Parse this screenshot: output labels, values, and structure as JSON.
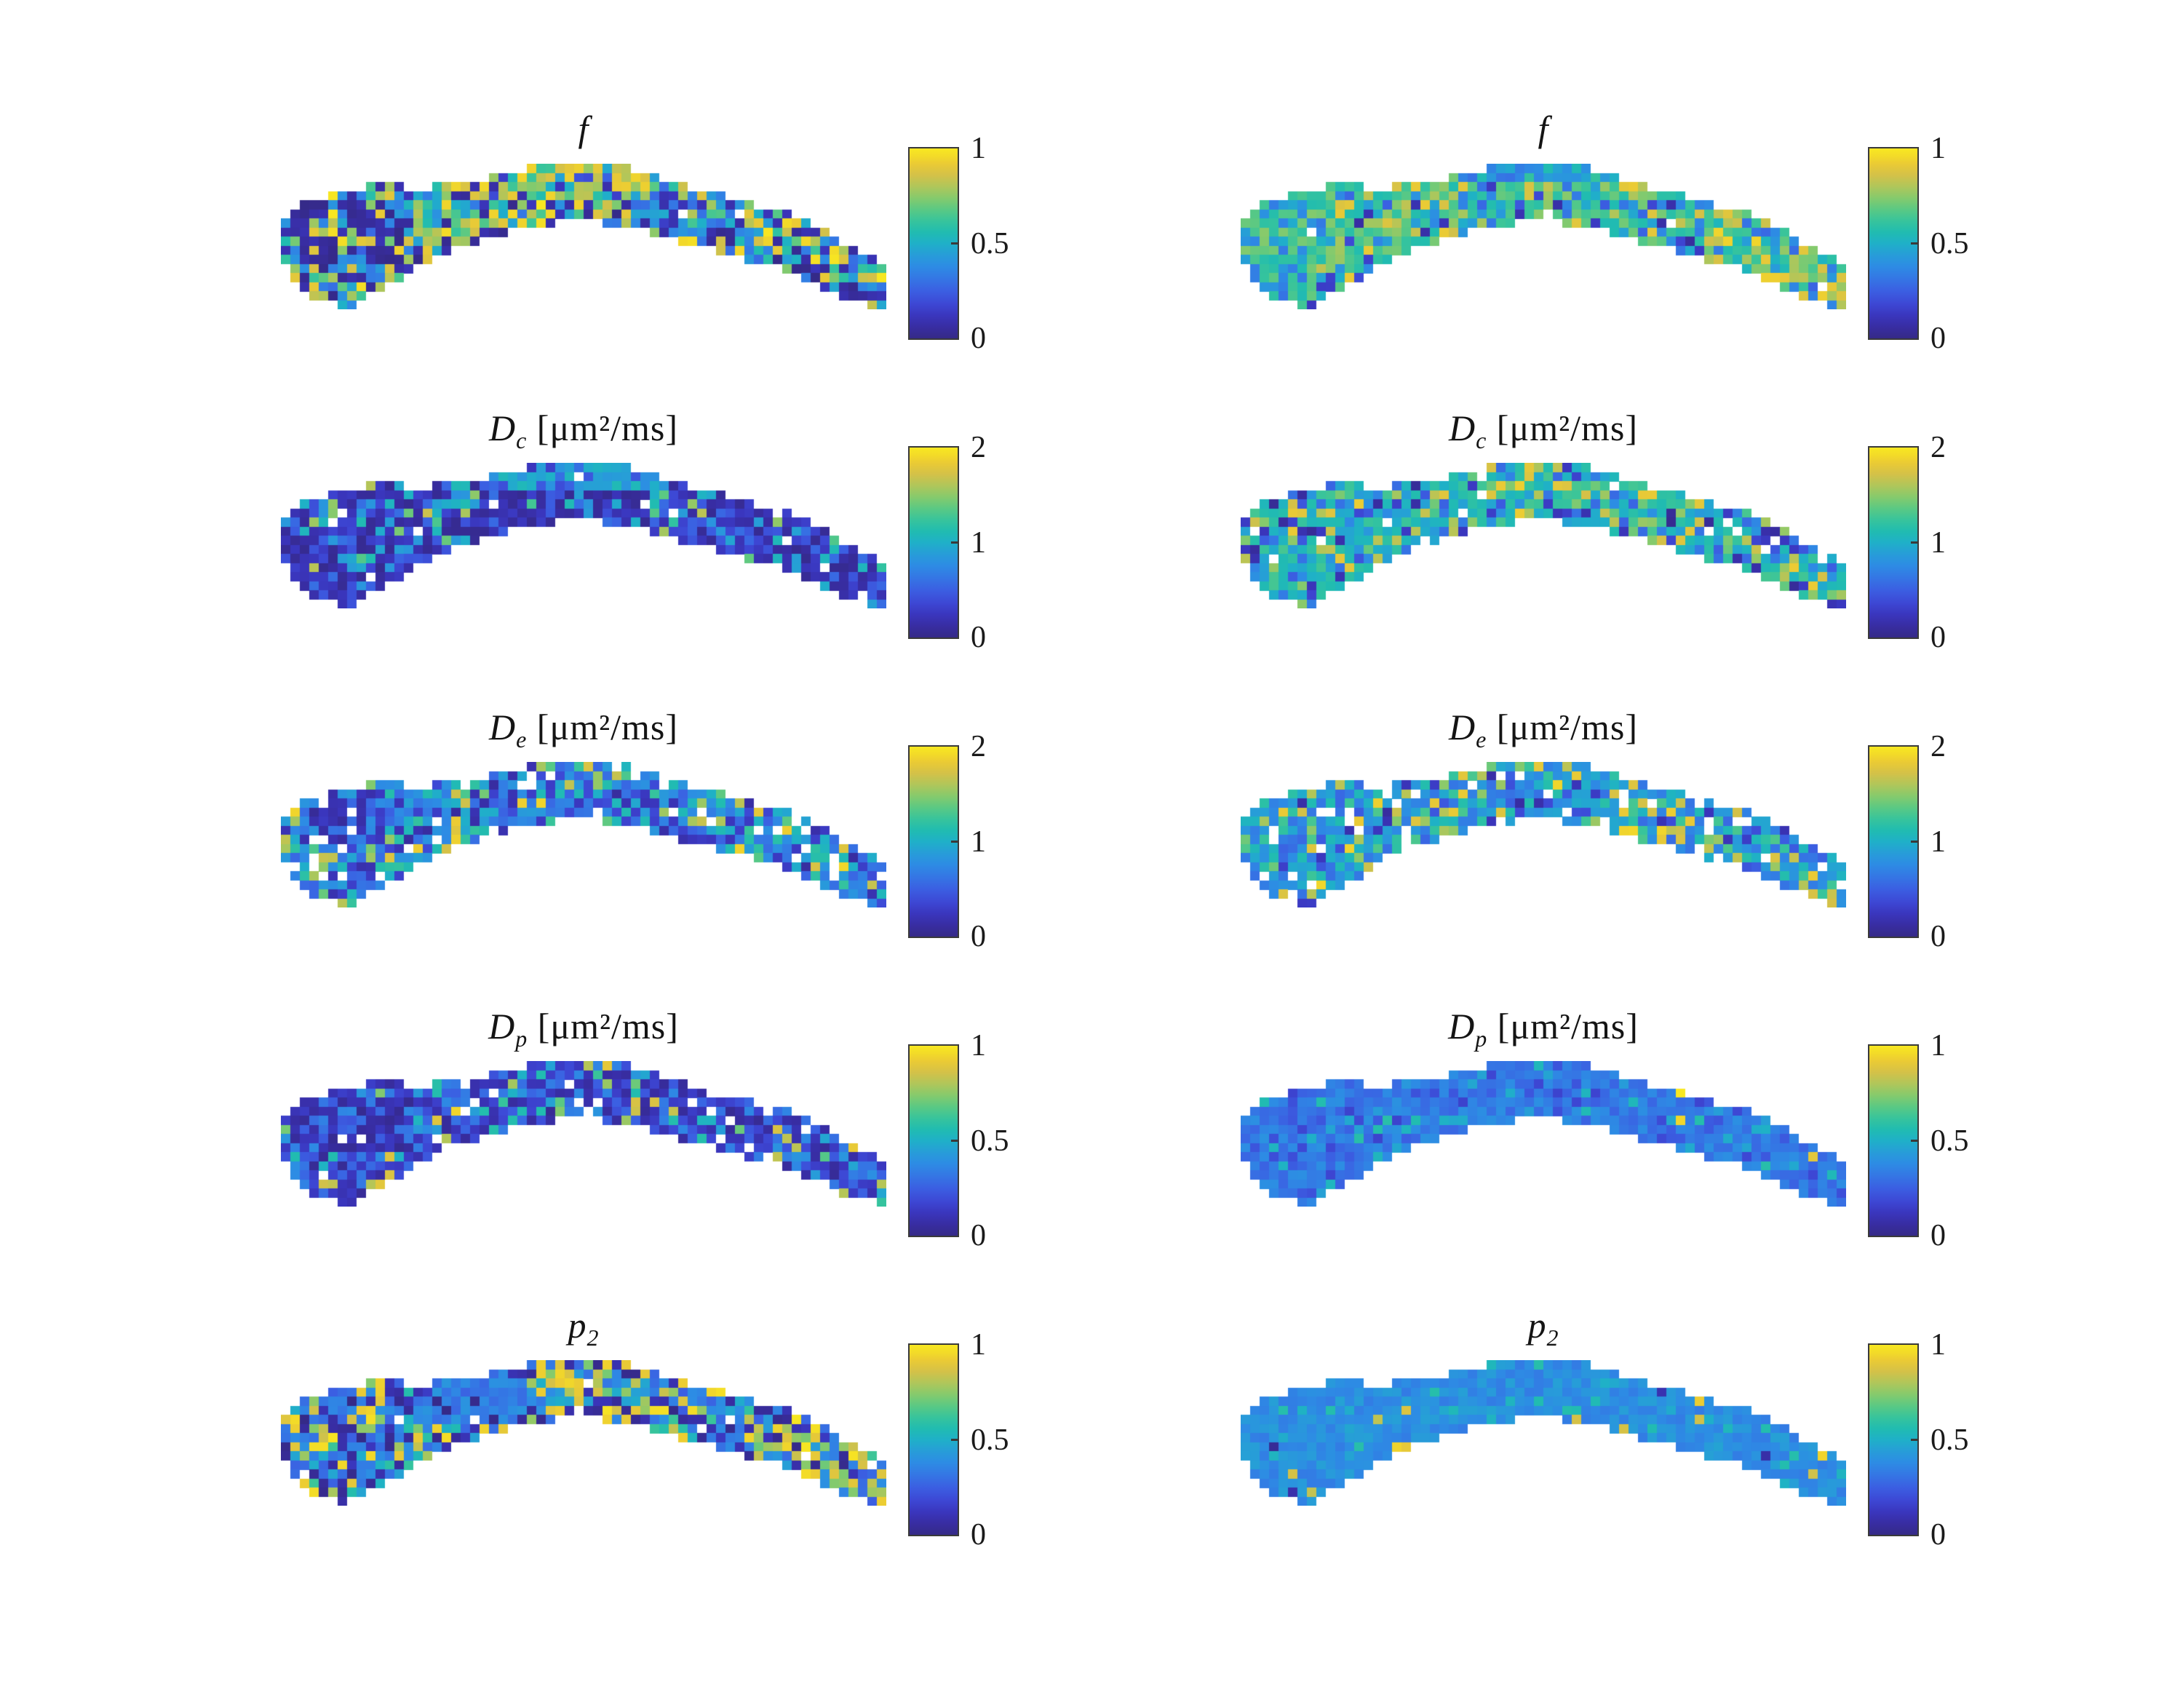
{
  "figure": {
    "background": "#ffffff",
    "description": "5x2 grid of voxelwise parameter maps of a curved tissue slice with parula colorbars"
  },
  "chart_data": {
    "type": "heatmap",
    "layout": {
      "rows": 5,
      "columns": 2,
      "legend_position": "right-of-each-panel",
      "grid_lines": false
    },
    "colormap": {
      "name": "parula",
      "stops": [
        [
          0.0,
          "#352A87"
        ],
        [
          0.06,
          "#382DA2"
        ],
        [
          0.12,
          "#3A36BD"
        ],
        [
          0.18,
          "#3D47D4"
        ],
        [
          0.25,
          "#3B5FE2"
        ],
        [
          0.32,
          "#3478E4"
        ],
        [
          0.38,
          "#2D8CE4"
        ],
        [
          0.44,
          "#279DD8"
        ],
        [
          0.5,
          "#1FB0C8"
        ],
        [
          0.56,
          "#21BCB0"
        ],
        [
          0.62,
          "#38C49B"
        ],
        [
          0.68,
          "#5BC983"
        ],
        [
          0.74,
          "#86CA6C"
        ],
        [
          0.8,
          "#B0C65A"
        ],
        [
          0.86,
          "#D4C148"
        ],
        [
          0.92,
          "#EBCB34"
        ],
        [
          0.96,
          "#F3DB28"
        ],
        [
          1.0,
          "#F8E821"
        ]
      ]
    },
    "grid": {
      "cols": 64,
      "rows": 16,
      "mask_top": [
        6,
        5,
        4,
        4,
        4,
        3,
        3,
        3,
        3,
        2,
        2,
        2,
        2,
        3,
        3,
        3,
        2,
        2,
        2,
        2,
        2,
        2,
        1,
        1,
        1,
        1,
        0,
        0,
        0,
        0,
        0,
        0,
        0,
        0,
        0,
        0,
        0,
        1,
        1,
        1,
        2,
        2,
        2,
        3,
        3,
        3,
        3,
        4,
        4,
        4,
        5,
        5,
        5,
        5,
        6,
        6,
        7,
        7,
        8,
        9,
        9,
        10,
        10,
        11
      ],
      "mask_bot": [
        10,
        12,
        13,
        14,
        14,
        14,
        15,
        15,
        14,
        13,
        13,
        12,
        12,
        11,
        10,
        10,
        9,
        9,
        8,
        8,
        8,
        7,
        7,
        7,
        6,
        6,
        6,
        6,
        6,
        5,
        5,
        5,
        5,
        5,
        6,
        6,
        6,
        6,
        6,
        7,
        7,
        7,
        8,
        8,
        8,
        8,
        9,
        9,
        9,
        10,
        10,
        10,
        10,
        11,
        11,
        12,
        12,
        13,
        13,
        14,
        14,
        14,
        15,
        15
      ]
    },
    "panels": [
      {
        "id": "f-left",
        "row": 0,
        "col": "left",
        "title": {
          "var": "f",
          "sub": "",
          "unit": "",
          "plain": "f"
        },
        "cbar": {
          "vmin": 0,
          "vmax": 1,
          "ticks": [
            "1",
            "0.5",
            "0"
          ]
        },
        "seed": 101,
        "holes": 0.01,
        "dist": [
          [
            0.3,
            0.72,
            1.0
          ],
          [
            0.22,
            0.0,
            0.12
          ],
          [
            0.28,
            0.28,
            0.52
          ],
          [
            0.2,
            0.52,
            0.7
          ]
        ],
        "regions": [
          {
            "c0": 1,
            "c1": 12,
            "r0": 4,
            "r1": 10,
            "dist": [
              [
                0.5,
                0.0,
                0.1
              ],
              [
                0.28,
                0.7,
                1.0
              ],
              [
                0.22,
                0.25,
                0.5
              ]
            ]
          },
          {
            "c0": 22,
            "c1": 38,
            "r0": 0,
            "r1": 3,
            "dist": [
              [
                0.62,
                0.72,
                0.95
              ],
              [
                0.25,
                0.45,
                0.68
              ],
              [
                0.13,
                0.05,
                0.3
              ]
            ]
          },
          {
            "c0": 39,
            "c1": 49,
            "r0": 3,
            "r1": 7,
            "dist": [
              [
                0.45,
                0.28,
                0.5
              ],
              [
                0.3,
                0.0,
                0.15
              ],
              [
                0.25,
                0.6,
                0.9
              ]
            ]
          }
        ]
      },
      {
        "id": "f-right",
        "row": 0,
        "col": "right",
        "title": {
          "var": "f",
          "sub": "",
          "unit": "",
          "plain": "f"
        },
        "cbar": {
          "vmin": 0,
          "vmax": 1,
          "ticks": [
            "1",
            "0.5",
            "0"
          ]
        },
        "seed": 102,
        "holes": 0.01,
        "dist": [
          [
            0.5,
            0.55,
            0.75
          ],
          [
            0.18,
            0.75,
            0.92
          ],
          [
            0.22,
            0.3,
            0.52
          ],
          [
            0.1,
            0.05,
            0.28
          ]
        ],
        "regions": [
          {
            "c0": 23,
            "c1": 39,
            "r0": 0,
            "r1": 1,
            "dist": [
              [
                0.85,
                0.3,
                0.48
              ],
              [
                0.15,
                0.5,
                0.62
              ]
            ]
          },
          {
            "c0": 50,
            "c1": 63,
            "r0": 5,
            "r1": 15,
            "dist": [
              [
                0.5,
                0.68,
                0.95
              ],
              [
                0.3,
                0.5,
                0.68
              ],
              [
                0.2,
                0.25,
                0.45
              ]
            ]
          },
          {
            "c0": 0,
            "c1": 7,
            "r0": 4,
            "r1": 12,
            "dist": [
              [
                0.6,
                0.55,
                0.75
              ],
              [
                0.4,
                0.32,
                0.5
              ]
            ]
          }
        ]
      },
      {
        "id": "Dc-left",
        "row": 1,
        "col": "left",
        "title": {
          "var": "D",
          "sub": "c",
          "unit": " [μm²/ms]",
          "plain": "Dc [um2/ms]"
        },
        "cbar": {
          "vmin": 0,
          "vmax": 2,
          "ticks": [
            "2",
            "1",
            "0"
          ]
        },
        "seed": 103,
        "holes": 0.02,
        "dist": [
          [
            0.5,
            0.02,
            0.14
          ],
          [
            0.28,
            0.14,
            0.3
          ],
          [
            0.17,
            0.4,
            0.56
          ],
          [
            0.05,
            0.6,
            0.85
          ]
        ],
        "regions": [
          {
            "c0": 22,
            "c1": 39,
            "r0": 0,
            "r1": 2,
            "dist": [
              [
                0.75,
                0.38,
                0.55
              ],
              [
                0.25,
                0.1,
                0.3
              ]
            ]
          }
        ]
      },
      {
        "id": "Dc-right",
        "row": 1,
        "col": "right",
        "title": {
          "var": "D",
          "sub": "c",
          "unit": " [μm²/ms]",
          "plain": "Dc [um2/ms]"
        },
        "cbar": {
          "vmin": 0,
          "vmax": 2,
          "ticks": [
            "2",
            "1",
            "0"
          ]
        },
        "seed": 104,
        "holes": 0.03,
        "dist": [
          [
            0.5,
            0.45,
            0.65
          ],
          [
            0.2,
            0.68,
            0.93
          ],
          [
            0.2,
            0.22,
            0.45
          ],
          [
            0.1,
            0.02,
            0.18
          ]
        ],
        "regions": []
      },
      {
        "id": "De-left",
        "row": 2,
        "col": "left",
        "title": {
          "var": "D",
          "sub": "e",
          "unit": " [μm²/ms]",
          "plain": "De [um2/ms]"
        },
        "cbar": {
          "vmin": 0,
          "vmax": 2,
          "ticks": [
            "2",
            "1",
            "0"
          ]
        },
        "seed": 105,
        "holes": 0.07,
        "dist": [
          [
            0.42,
            0.25,
            0.45
          ],
          [
            0.22,
            0.05,
            0.2
          ],
          [
            0.22,
            0.45,
            0.62
          ],
          [
            0.14,
            0.65,
            0.95
          ]
        ],
        "regions": [
          {
            "c0": 2,
            "c1": 10,
            "r0": 3,
            "r1": 8,
            "dist": [
              [
                0.6,
                0.03,
                0.16
              ],
              [
                0.4,
                0.25,
                0.45
              ]
            ]
          }
        ]
      },
      {
        "id": "De-right",
        "row": 2,
        "col": "right",
        "title": {
          "var": "D",
          "sub": "e",
          "unit": " [μm²/ms]",
          "plain": "De [um2/ms]"
        },
        "cbar": {
          "vmin": 0,
          "vmax": 2,
          "ticks": [
            "2",
            "1",
            "0"
          ]
        },
        "seed": 106,
        "holes": 0.06,
        "dist": [
          [
            0.5,
            0.3,
            0.5
          ],
          [
            0.2,
            0.5,
            0.66
          ],
          [
            0.16,
            0.7,
            0.95
          ],
          [
            0.14,
            0.05,
            0.3
          ]
        ],
        "regions": []
      },
      {
        "id": "Dp-left",
        "row": 3,
        "col": "left",
        "title": {
          "var": "D",
          "sub": "p",
          "unit": " [μm²/ms]",
          "plain": "Dp [um2/ms]"
        },
        "cbar": {
          "vmin": 0,
          "vmax": 1,
          "ticks": [
            "1",
            "0.5",
            "0"
          ]
        },
        "seed": 107,
        "holes": 0.06,
        "dist": [
          [
            0.5,
            0.03,
            0.2
          ],
          [
            0.3,
            0.2,
            0.38
          ],
          [
            0.12,
            0.38,
            0.58
          ],
          [
            0.08,
            0.6,
            0.95
          ]
        ],
        "regions": [
          {
            "c0": 1,
            "c1": 13,
            "r0": 4,
            "r1": 9,
            "dist": [
              [
                0.7,
                0.02,
                0.14
              ],
              [
                0.3,
                0.2,
                0.38
              ]
            ]
          }
        ]
      },
      {
        "id": "Dp-right",
        "row": 3,
        "col": "right",
        "title": {
          "var": "D",
          "sub": "p",
          "unit": " [μm²/ms]",
          "plain": "Dp [um2/ms]"
        },
        "cbar": {
          "vmin": 0,
          "vmax": 1,
          "ticks": [
            "1",
            "0.5",
            "0"
          ]
        },
        "seed": 108,
        "holes": 0.0,
        "dist": [
          [
            0.78,
            0.26,
            0.4
          ],
          [
            0.12,
            0.16,
            0.26
          ],
          [
            0.09,
            0.42,
            0.58
          ],
          [
            0.01,
            0.85,
            1.0
          ]
        ],
        "regions": []
      },
      {
        "id": "p2-left",
        "row": 4,
        "col": "left",
        "title": {
          "var": "p",
          "sub": "2",
          "unit": "",
          "plain": "p2"
        },
        "cbar": {
          "vmin": 0,
          "vmax": 1,
          "ticks": [
            "1",
            "0.5",
            "0"
          ]
        },
        "seed": 109,
        "holes": 0.01,
        "dist": [
          [
            0.4,
            0.24,
            0.4
          ],
          [
            0.25,
            0.0,
            0.12
          ],
          [
            0.22,
            0.72,
            1.0
          ],
          [
            0.13,
            0.45,
            0.65
          ]
        ],
        "regions": [
          {
            "c0": 14,
            "c1": 25,
            "r0": 2,
            "r1": 6,
            "dist": [
              [
                0.8,
                0.26,
                0.42
              ],
              [
                0.2,
                0.0,
                0.15
              ]
            ]
          },
          {
            "c0": 26,
            "c1": 38,
            "r0": 1,
            "r1": 4,
            "dist": [
              [
                0.5,
                0.7,
                0.95
              ],
              [
                0.3,
                0.3,
                0.5
              ],
              [
                0.2,
                0.0,
                0.15
              ]
            ]
          },
          {
            "c0": 46,
            "c1": 60,
            "r0": 6,
            "r1": 13,
            "dist": [
              [
                0.45,
                0.7,
                1.0
              ],
              [
                0.3,
                0.25,
                0.45
              ],
              [
                0.25,
                0.0,
                0.15
              ]
            ]
          }
        ]
      },
      {
        "id": "p2-right",
        "row": 4,
        "col": "right",
        "title": {
          "var": "p",
          "sub": "2",
          "unit": "",
          "plain": "p2"
        },
        "cbar": {
          "vmin": 0,
          "vmax": 1,
          "ticks": [
            "1",
            "0.5",
            "0"
          ]
        },
        "seed": 110,
        "holes": 0.0,
        "dist": [
          [
            0.9,
            0.33,
            0.45
          ],
          [
            0.07,
            0.45,
            0.58
          ],
          [
            0.02,
            0.82,
            0.95
          ],
          [
            0.01,
            0.02,
            0.1
          ]
        ],
        "regions": []
      }
    ]
  }
}
